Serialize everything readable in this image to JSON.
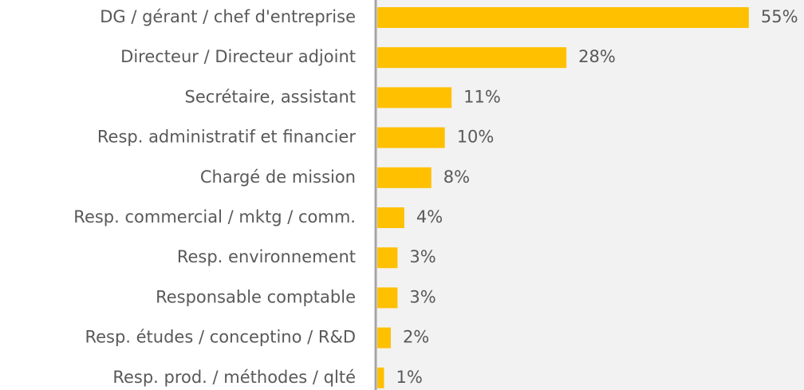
{
  "chart_data": {
    "type": "bar",
    "orientation": "horizontal",
    "categories": [
      "DG / gérant / chef d'entreprise",
      "Directeur / Directeur adjoint",
      "Secrétaire, assistant",
      "Resp. administratif et financier",
      "Chargé de mission",
      "Resp. commercial / mktg / comm.",
      "Resp. environnement",
      "Responsable comptable",
      "Resp. études / conceptino / R&D",
      "Resp. prod. / méthodes / qlté"
    ],
    "values": [
      55,
      28,
      11,
      10,
      8,
      4,
      3,
      3,
      2,
      1
    ],
    "value_labels": [
      "55%",
      "28%",
      "11%",
      "10%",
      "8%",
      "4%",
      "3%",
      "3%",
      "2%",
      "1%"
    ],
    "color": "#ffc000"
  }
}
